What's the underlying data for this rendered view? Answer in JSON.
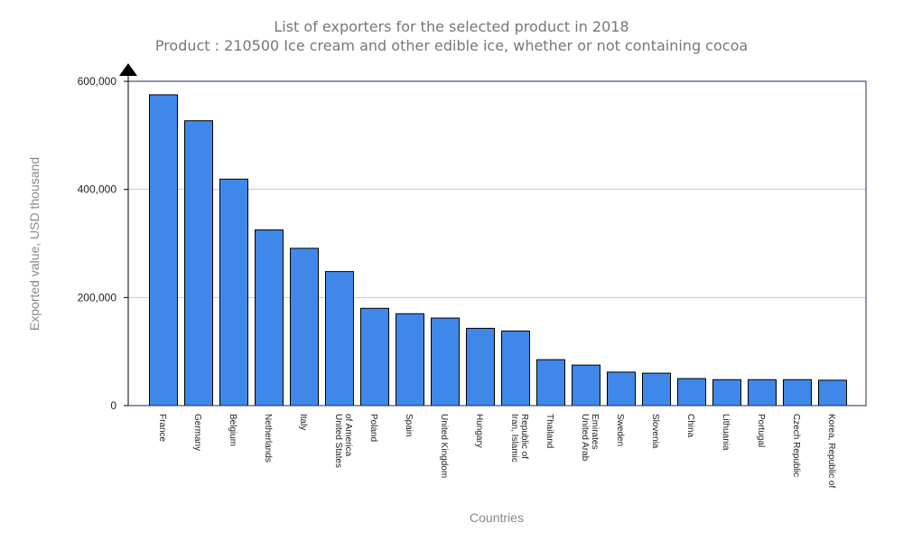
{
  "chart_data": {
    "type": "bar",
    "title": "List of exporters for the selected product in 2018",
    "subtitle": "Product : 210500 Ice cream and other edible ice, whether or not containing cocoa",
    "xlabel": "Countries",
    "ylabel": "Exported value, USD thousand",
    "ylim": [
      0,
      600000
    ],
    "yticks": [
      {
        "value": 0,
        "label": "0"
      },
      {
        "value": 200000,
        "label": "200,000"
      },
      {
        "value": 400000,
        "label": "400,000"
      },
      {
        "value": 600000,
        "label": "600,000"
      }
    ],
    "grid": true,
    "bar_color": "#3f88ea",
    "categories": [
      [
        "France"
      ],
      [
        "Germany"
      ],
      [
        "Belgium"
      ],
      [
        "Netherlands"
      ],
      [
        "Italy"
      ],
      [
        "United States",
        "of America"
      ],
      [
        "Poland"
      ],
      [
        "Spain"
      ],
      [
        "United Kingdom"
      ],
      [
        "Hungary"
      ],
      [
        "Iran, Islamic",
        "Republic of"
      ],
      [
        "Thailand"
      ],
      [
        "United Arab",
        "Emirates"
      ],
      [
        "Sweden"
      ],
      [
        "Slovenia"
      ],
      [
        "China"
      ],
      [
        "Lithuania"
      ],
      [
        "Portugal"
      ],
      [
        "Czech Republic"
      ],
      [
        "Korea, Republic of"
      ]
    ],
    "values": [
      575000,
      527000,
      419000,
      325000,
      291000,
      248000,
      180000,
      170000,
      162000,
      143000,
      138000,
      85000,
      75000,
      62000,
      60000,
      50000,
      48000,
      48000,
      48000,
      47000
    ]
  }
}
